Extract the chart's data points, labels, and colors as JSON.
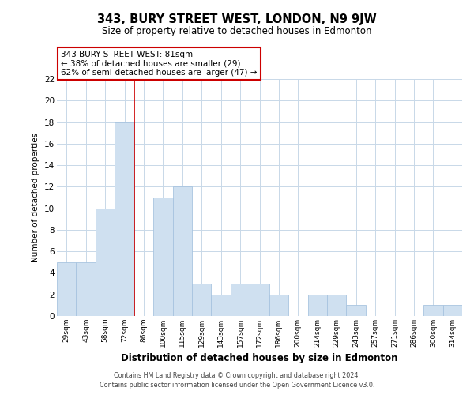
{
  "title": "343, BURY STREET WEST, LONDON, N9 9JW",
  "subtitle": "Size of property relative to detached houses in Edmonton",
  "xlabel": "Distribution of detached houses by size in Edmonton",
  "ylabel": "Number of detached properties",
  "categories": [
    "29sqm",
    "43sqm",
    "58sqm",
    "72sqm",
    "86sqm",
    "100sqm",
    "115sqm",
    "129sqm",
    "143sqm",
    "157sqm",
    "172sqm",
    "186sqm",
    "200sqm",
    "214sqm",
    "229sqm",
    "243sqm",
    "257sqm",
    "271sqm",
    "286sqm",
    "300sqm",
    "314sqm"
  ],
  "values": [
    5,
    5,
    10,
    18,
    0,
    11,
    12,
    3,
    2,
    3,
    3,
    2,
    0,
    2,
    2,
    1,
    0,
    0,
    0,
    1,
    1
  ],
  "bar_color": "#cfe0f0",
  "bar_edge_color": "#a8c4e0",
  "highlight_line_color": "#cc0000",
  "annotation_line1": "343 BURY STREET WEST: 81sqm",
  "annotation_line2": "← 38% of detached houses are smaller (29)",
  "annotation_line3": "62% of semi-detached houses are larger (47) →",
  "annotation_box_edge": "#cc0000",
  "ylim": [
    0,
    22
  ],
  "yticks": [
    0,
    2,
    4,
    6,
    8,
    10,
    12,
    14,
    16,
    18,
    20,
    22
  ],
  "grid_color": "#c8d8e8",
  "background_color": "#ffffff",
  "footer_line1": "Contains HM Land Registry data © Crown copyright and database right 2024.",
  "footer_line2": "Contains public sector information licensed under the Open Government Licence v3.0."
}
